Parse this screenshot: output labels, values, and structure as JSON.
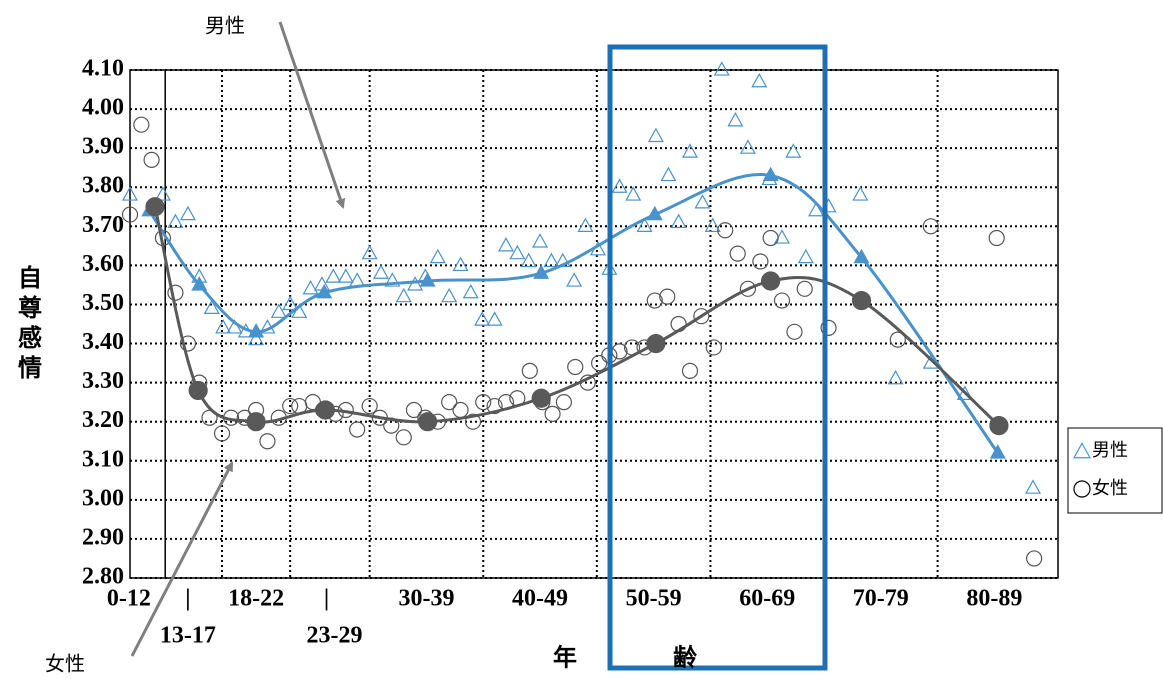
{
  "chart_data": {
    "type": "scatter",
    "xlabel": "年　　　　齢",
    "ylabel": "自尊感情",
    "annotations": [
      "男性",
      "女性"
    ],
    "xlim": [
      8.9,
      90.6
    ],
    "ylim": [
      2.8,
      4.1
    ],
    "yticks": [
      {
        "value": 2.8,
        "label": "2.80"
      },
      {
        "value": 2.9,
        "label": "2.90"
      },
      {
        "value": 3.0,
        "label": "3.00"
      },
      {
        "value": 3.1,
        "label": "3.10"
      },
      {
        "value": 3.2,
        "label": "3.20"
      },
      {
        "value": 3.3,
        "label": "3.30"
      },
      {
        "value": 3.4,
        "label": "3.40"
      },
      {
        "value": 3.5,
        "label": "3.50"
      },
      {
        "value": 3.6,
        "label": "3.60"
      },
      {
        "value": 3.7,
        "label": "3.70"
      },
      {
        "value": 3.8,
        "label": "3.80"
      },
      {
        "value": 3.9,
        "label": "3.90"
      },
      {
        "value": 4.0,
        "label": "4.00"
      },
      {
        "value": 4.1,
        "label": "4.10"
      }
    ],
    "xaxis_line": 12,
    "xgrid": [
      17,
      23,
      30,
      40,
      50,
      60,
      70,
      80
    ],
    "xticks": [
      {
        "value": 8.8,
        "label": "0-12"
      },
      {
        "value": 14,
        "label": "|"
      },
      {
        "value": 20,
        "label": "18-22"
      },
      {
        "value": 26.2,
        "label": "|"
      },
      {
        "value": 35,
        "label": "30-39"
      },
      {
        "value": 45,
        "label": "40-49"
      },
      {
        "value": 55,
        "label": "50-59"
      },
      {
        "value": 65,
        "label": "60-69"
      },
      {
        "value": 75,
        "label": "70-79"
      },
      {
        "value": 85,
        "label": "80-89"
      }
    ],
    "xticks2": [
      {
        "value": 14,
        "label": "13-17"
      },
      {
        "value": 26.9,
        "label": "23-29"
      }
    ],
    "grid": true,
    "series": [
      {
        "name": "男性",
        "color": "#4a92cc",
        "marker": "triangle",
        "x": [
          8.9,
          11.8,
          12.9,
          14.0,
          15.0,
          16.1,
          17.1,
          18.1,
          19.1,
          20.0,
          21.0,
          22.0,
          23.0,
          23.8,
          24.8,
          25.8,
          26.8,
          27.9,
          28.9,
          30,
          31,
          32.0,
          33.0,
          34.0,
          34.9,
          36.0,
          37.0,
          38.0,
          38.9,
          39.9,
          41.0,
          42.0,
          43.0,
          44.0,
          45.0,
          46.0,
          47.0,
          48.0,
          49.0,
          50.1,
          51.1,
          52.0,
          53.2,
          54.2,
          55.2,
          56.3,
          57.2,
          58.2,
          59.3,
          60.2,
          61.0,
          62.2,
          63.3,
          64.3,
          65.2,
          66.3,
          67.3,
          68.4,
          69.3,
          70.4,
          73.2,
          76.3,
          79.4,
          82.4,
          88.4
        ],
        "values": [
          3.78,
          3.78,
          3.71,
          3.73,
          3.57,
          3.49,
          3.44,
          3.44,
          3.43,
          3.41,
          3.44,
          3.48,
          3.5,
          3.48,
          3.54,
          3.55,
          3.57,
          3.57,
          3.56,
          3.63,
          3.58,
          3.56,
          3.52,
          3.55,
          3.57,
          3.62,
          3.52,
          3.6,
          3.53,
          3.46,
          3.46,
          3.65,
          3.63,
          3.61,
          3.66,
          3.61,
          3.61,
          3.56,
          3.7,
          3.64,
          3.59,
          3.8,
          3.78,
          3.7,
          3.93,
          3.83,
          3.71,
          3.89,
          3.76,
          3.7,
          4.1,
          3.97,
          3.9,
          4.07,
          3.82,
          3.67,
          3.89,
          3.62,
          3.74,
          3.75,
          3.78,
          3.31,
          3.35,
          3.27,
          3.03
        ]
      },
      {
        "name": "女性",
        "color": "#555555",
        "marker": "circle",
        "x": [
          9.9,
          8.9,
          10.8,
          11.8,
          12.9,
          14.0,
          15.0,
          15.9,
          17.0,
          17.8,
          19.0,
          20.0,
          21.0,
          22.0,
          23.0,
          23.8,
          25.0,
          25.9,
          27.0,
          27.9,
          28.9,
          30,
          30.9,
          31.9,
          33.0,
          33.9,
          34.9,
          36.0,
          37.0,
          38.0,
          39.1,
          40.0,
          41.0,
          42.0,
          43.0,
          44.1,
          45.2,
          46.1,
          47.1,
          48.1,
          49.2,
          50.2,
          51.1,
          52.0,
          53.1,
          54.2,
          55.1,
          56.2,
          57.2,
          58.2,
          59.2,
          60.3,
          61.3,
          62.4,
          63.3,
          64.4,
          65.3,
          66.3,
          67.4,
          68.3,
          70.4,
          76.5,
          79.4,
          85.2,
          88.5
        ],
        "values": [
          3.96,
          3.73,
          3.87,
          3.67,
          3.53,
          3.4,
          3.3,
          3.21,
          3.17,
          3.21,
          3.21,
          3.23,
          3.15,
          3.21,
          3.24,
          3.24,
          3.25,
          3.23,
          3.22,
          3.23,
          3.18,
          3.24,
          3.21,
          3.19,
          3.16,
          3.23,
          3.21,
          3.2,
          3.25,
          3.23,
          3.2,
          3.25,
          3.24,
          3.25,
          3.26,
          3.33,
          3.25,
          3.22,
          3.25,
          3.34,
          3.3,
          3.35,
          3.37,
          3.38,
          3.39,
          3.39,
          3.51,
          3.52,
          3.45,
          3.33,
          3.47,
          3.39,
          3.69,
          3.63,
          3.54,
          3.61,
          3.67,
          3.51,
          3.43,
          3.54,
          3.44,
          3.41,
          3.7,
          3.67,
          2.85
        ]
      }
    ],
    "fit": [
      {
        "color": "#4a92cc",
        "marker": "triangle",
        "x": [
          10.6,
          15.0,
          20.0,
          26.0,
          35.1,
          45.1,
          55.1,
          65.3,
          73.3,
          85.3
        ],
        "values": [
          3.74,
          3.55,
          3.43,
          3.53,
          3.56,
          3.58,
          3.73,
          3.83,
          3.62,
          3.12
        ]
      },
      {
        "color": "#595959",
        "marker": "circle",
        "x": [
          11.1,
          14.9,
          20.0,
          26.1,
          35.1,
          45.1,
          55.2,
          65.3,
          73.3,
          85.4
        ],
        "values": [
          3.75,
          3.28,
          3.2,
          3.23,
          3.2,
          3.26,
          3.4,
          3.56,
          3.51,
          3.19
        ]
      }
    ]
  }
}
